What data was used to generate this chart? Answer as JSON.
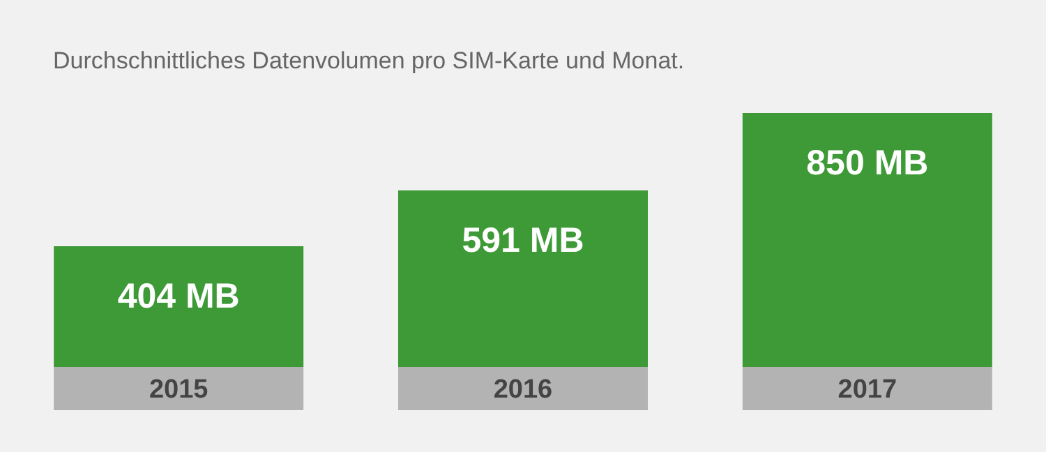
{
  "chart_data": {
    "type": "bar",
    "title": "Durchschnittliches Datenvolumen pro SIM-Karte und Monat.",
    "categories": [
      "2015",
      "2016",
      "2017"
    ],
    "values": [
      404,
      591,
      850
    ],
    "value_labels": [
      "404 MB",
      "591 MB",
      "850 MB"
    ],
    "color": "#3d9a36",
    "grid": false,
    "tick_labels": "x"
  }
}
